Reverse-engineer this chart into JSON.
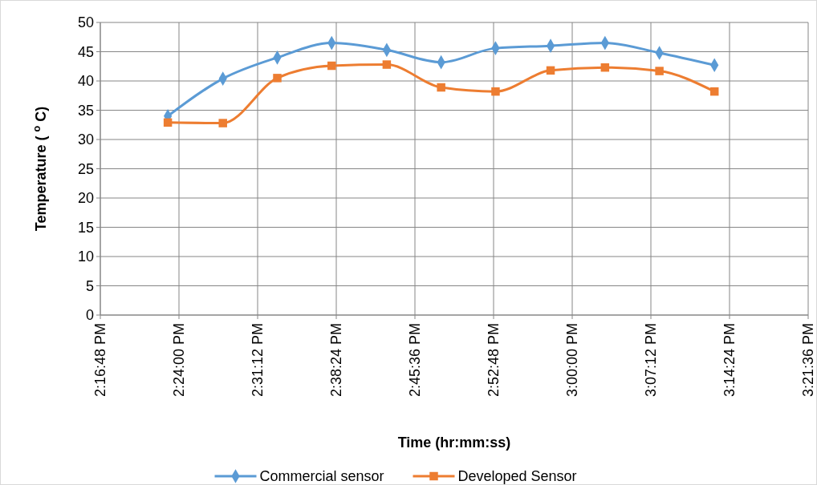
{
  "chart_data": {
    "type": "line",
    "xlabel": "Time (hr:mm:ss)",
    "ylabel": "Temperature ( $^{o}$ C)",
    "xlim": [
      14.28,
      15.36
    ],
    "xticks": [
      {
        "value": 14.28,
        "label": "2:16:48 PM"
      },
      {
        "value": 14.4,
        "label": "2:24:00 PM"
      },
      {
        "value": 14.52,
        "label": "2:31:12 PM"
      },
      {
        "value": 14.64,
        "label": "2:38:24 PM"
      },
      {
        "value": 14.76,
        "label": "2:45:36 PM"
      },
      {
        "value": 14.88,
        "label": "2:52:48 PM"
      },
      {
        "value": 15,
        "label": "3:00:00 PM"
      },
      {
        "value": 15.12,
        "label": "3:07:12 PM"
      },
      {
        "value": 15.24,
        "label": "3:14:24 PM"
      },
      {
        "value": 15.36,
        "label": "3:21:36 PM"
      }
    ],
    "ylim": [
      0,
      50
    ],
    "yticks": [
      0,
      5,
      10,
      15,
      20,
      25,
      30,
      35,
      40,
      45,
      50
    ],
    "x": [
      14.383,
      14.467,
      14.55,
      14.633,
      14.717,
      14.8,
      14.883,
      14.967,
      15.05,
      15.133,
      15.217
    ],
    "series": [
      {
        "name": "Commercial sensor",
        "color": "#5b9bd5",
        "marker": "diamond",
        "values": [
          34,
          40.4,
          44,
          46.5,
          45.3,
          43.2,
          45.6,
          46,
          46.5,
          44.8,
          42.7
        ]
      },
      {
        "name": "Developed Sensor",
        "color": "#ed7d31",
        "marker": "square",
        "values": [
          32.9,
          32.8,
          40.5,
          42.6,
          42.8,
          38.9,
          38.2,
          41.8,
          42.3,
          41.7,
          38.2
        ]
      }
    ],
    "grid": true,
    "legend": "bottom",
    "line_style": "solid"
  }
}
